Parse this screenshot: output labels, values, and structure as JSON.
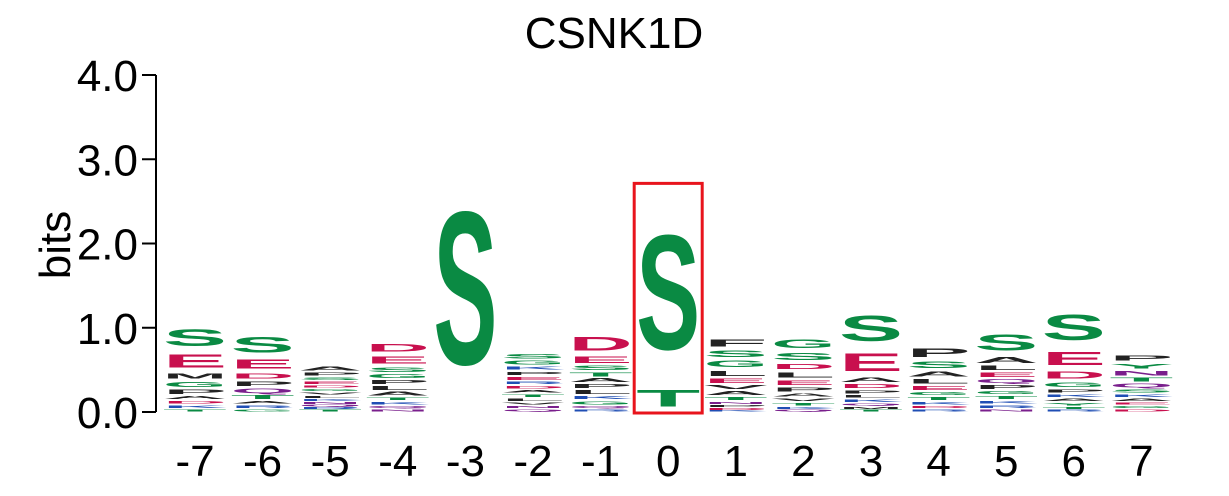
{
  "chart_data": {
    "type": "sequence-logo",
    "title": "CSNK1D",
    "ylabel": "bits",
    "ylim": [
      0,
      4.0
    ],
    "yticks": [
      "0.0",
      "1.0",
      "2.0",
      "3.0",
      "4.0"
    ],
    "highlight_position": "0",
    "highlight_color": "#e8141c",
    "colors": {
      "S": "#0a8a43",
      "T": "#0a8a43",
      "G": "#0a8a43",
      "Y": "#0a8a43",
      "C": "#0a8a43",
      "D": "#c8104e",
      "E": "#c8104e",
      "K": "#1f4eb4",
      "R": "#1f4eb4",
      "H": "#1f4eb4",
      "N": "#7a1f8c",
      "Q": "#7a1f8c",
      "A": "#222222",
      "V": "#222222",
      "L": "#222222",
      "I": "#222222",
      "P": "#222222",
      "F": "#222222",
      "M": "#222222",
      "W": "#222222"
    },
    "positions": [
      {
        "label": "-7",
        "letters": [
          [
            "S",
            0.32
          ],
          [
            "E",
            0.24
          ],
          [
            "G",
            0.1
          ],
          [
            "M",
            0.1
          ],
          [
            "P",
            0.08
          ],
          [
            "A",
            0.06
          ],
          [
            "K",
            0.05
          ],
          [
            "D",
            0.05
          ],
          [
            "T",
            0.04
          ]
        ]
      },
      {
        "label": "-6",
        "letters": [
          [
            "S",
            0.3
          ],
          [
            "E",
            0.17
          ],
          [
            "D",
            0.1
          ],
          [
            "P",
            0.09
          ],
          [
            "Q",
            0.08
          ],
          [
            "T",
            0.07
          ],
          [
            "R",
            0.05
          ],
          [
            "A",
            0.05
          ],
          [
            "G",
            0.04
          ]
        ]
      },
      {
        "label": "-5",
        "letters": [
          [
            "A",
            0.07
          ],
          [
            "P",
            0.06
          ],
          [
            "E",
            0.05
          ],
          [
            "S",
            0.05
          ],
          [
            "K",
            0.04
          ],
          [
            "L",
            0.04
          ],
          [
            "V",
            0.04
          ],
          [
            "G",
            0.04
          ],
          [
            "D",
            0.04
          ],
          [
            "T",
            0.03
          ],
          [
            "R",
            0.03
          ],
          [
            "Q",
            0.03
          ],
          [
            "N",
            0.03
          ]
        ]
      },
      {
        "label": "-4",
        "letters": [
          [
            "D",
            0.15
          ],
          [
            "E",
            0.14
          ],
          [
            "A",
            0.07
          ],
          [
            "L",
            0.07
          ],
          [
            "S",
            0.09
          ],
          [
            "P",
            0.07
          ],
          [
            "G",
            0.07
          ],
          [
            "K",
            0.05
          ],
          [
            "T",
            0.05
          ],
          [
            "N",
            0.04
          ],
          [
            "Q",
            0.04
          ]
        ]
      },
      {
        "label": "-3",
        "letters": [
          [
            "S",
            2.91
          ]
        ]
      },
      {
        "label": "-2",
        "letters": [
          [
            "S",
            0.08
          ],
          [
            "G",
            0.07
          ],
          [
            "E",
            0.06
          ],
          [
            "P",
            0.06
          ],
          [
            "K",
            0.06
          ],
          [
            "L",
            0.05
          ],
          [
            "T",
            0.05
          ],
          [
            "A",
            0.05
          ],
          [
            "D",
            0.05
          ],
          [
            "R",
            0.05
          ],
          [
            "Q",
            0.04
          ],
          [
            "N",
            0.04
          ],
          [
            "V",
            0.04
          ]
        ]
      },
      {
        "label": "-1",
        "letters": [
          [
            "D",
            0.26
          ],
          [
            "E",
            0.12
          ],
          [
            "S",
            0.08
          ],
          [
            "L",
            0.07
          ],
          [
            "P",
            0.07
          ],
          [
            "A",
            0.07
          ],
          [
            "G",
            0.06
          ],
          [
            "T",
            0.07
          ],
          [
            "K",
            0.06
          ],
          [
            "R",
            0.04
          ],
          [
            "Q",
            0.04
          ]
        ]
      },
      {
        "label": "0",
        "letters": [
          [
            "S",
            2.18
          ],
          [
            "T",
            0.32
          ]
        ]
      },
      {
        "label": "1",
        "letters": [
          [
            "F",
            0.14
          ],
          [
            "G",
            0.12
          ],
          [
            "S",
            0.12
          ],
          [
            "L",
            0.1
          ],
          [
            "E",
            0.08
          ],
          [
            "A",
            0.07
          ],
          [
            "V",
            0.07
          ],
          [
            "T",
            0.06
          ],
          [
            "P",
            0.04
          ],
          [
            "N",
            0.04
          ],
          [
            "D",
            0.03
          ],
          [
            "K",
            0.02
          ]
        ]
      },
      {
        "label": "2",
        "letters": [
          [
            "G",
            0.16
          ],
          [
            "S",
            0.14
          ],
          [
            "L",
            0.1
          ],
          [
            "D",
            0.1
          ],
          [
            "E",
            0.09
          ],
          [
            "P",
            0.07
          ],
          [
            "A",
            0.06
          ],
          [
            "T",
            0.05
          ],
          [
            "V",
            0.05
          ],
          [
            "K",
            0.04
          ],
          [
            "Q",
            0.03
          ]
        ]
      },
      {
        "label": "3",
        "letters": [
          [
            "S",
            0.48
          ],
          [
            "E",
            0.33
          ],
          [
            "A",
            0.08
          ],
          [
            "D",
            0.07
          ],
          [
            "P",
            0.06
          ],
          [
            "K",
            0.05
          ],
          [
            "L",
            0.05
          ],
          [
            "M",
            0.04
          ],
          [
            "Q",
            0.04
          ],
          [
            "T",
            0.03
          ]
        ]
      },
      {
        "label": "4",
        "letters": [
          [
            "P",
            0.16
          ],
          [
            "S",
            0.12
          ],
          [
            "A",
            0.1
          ],
          [
            "L",
            0.08
          ],
          [
            "E",
            0.07
          ],
          [
            "T",
            0.06
          ],
          [
            "G",
            0.06
          ],
          [
            "K",
            0.05
          ],
          [
            "R",
            0.04
          ],
          [
            "D",
            0.04
          ]
        ]
      },
      {
        "label": "5",
        "letters": [
          [
            "S",
            0.31
          ],
          [
            "A",
            0.11
          ],
          [
            "E",
            0.08
          ],
          [
            "L",
            0.08
          ],
          [
            "P",
            0.07
          ],
          [
            "Q",
            0.07
          ],
          [
            "T",
            0.06
          ],
          [
            "G",
            0.06
          ],
          [
            "R",
            0.05
          ],
          [
            "K",
            0.05
          ],
          [
            "N",
            0.04
          ]
        ]
      },
      {
        "label": "6",
        "letters": [
          [
            "S",
            0.48
          ],
          [
            "E",
            0.25
          ],
          [
            "D",
            0.14
          ],
          [
            "G",
            0.09
          ],
          [
            "Y",
            0.05
          ],
          [
            "P",
            0.06
          ],
          [
            "A",
            0.05
          ],
          [
            "K",
            0.05
          ],
          [
            "T",
            0.04
          ],
          [
            "R",
            0.03
          ]
        ]
      },
      {
        "label": "7",
        "letters": [
          [
            "P",
            0.1
          ],
          [
            "Y",
            0.09
          ],
          [
            "N",
            0.08
          ],
          [
            "Q",
            0.07
          ],
          [
            "T",
            0.07
          ],
          [
            "S",
            0.06
          ],
          [
            "A",
            0.05
          ],
          [
            "K",
            0.05
          ],
          [
            "D",
            0.04
          ],
          [
            "G",
            0.04
          ],
          [
            "E",
            0.04
          ]
        ]
      }
    ]
  }
}
